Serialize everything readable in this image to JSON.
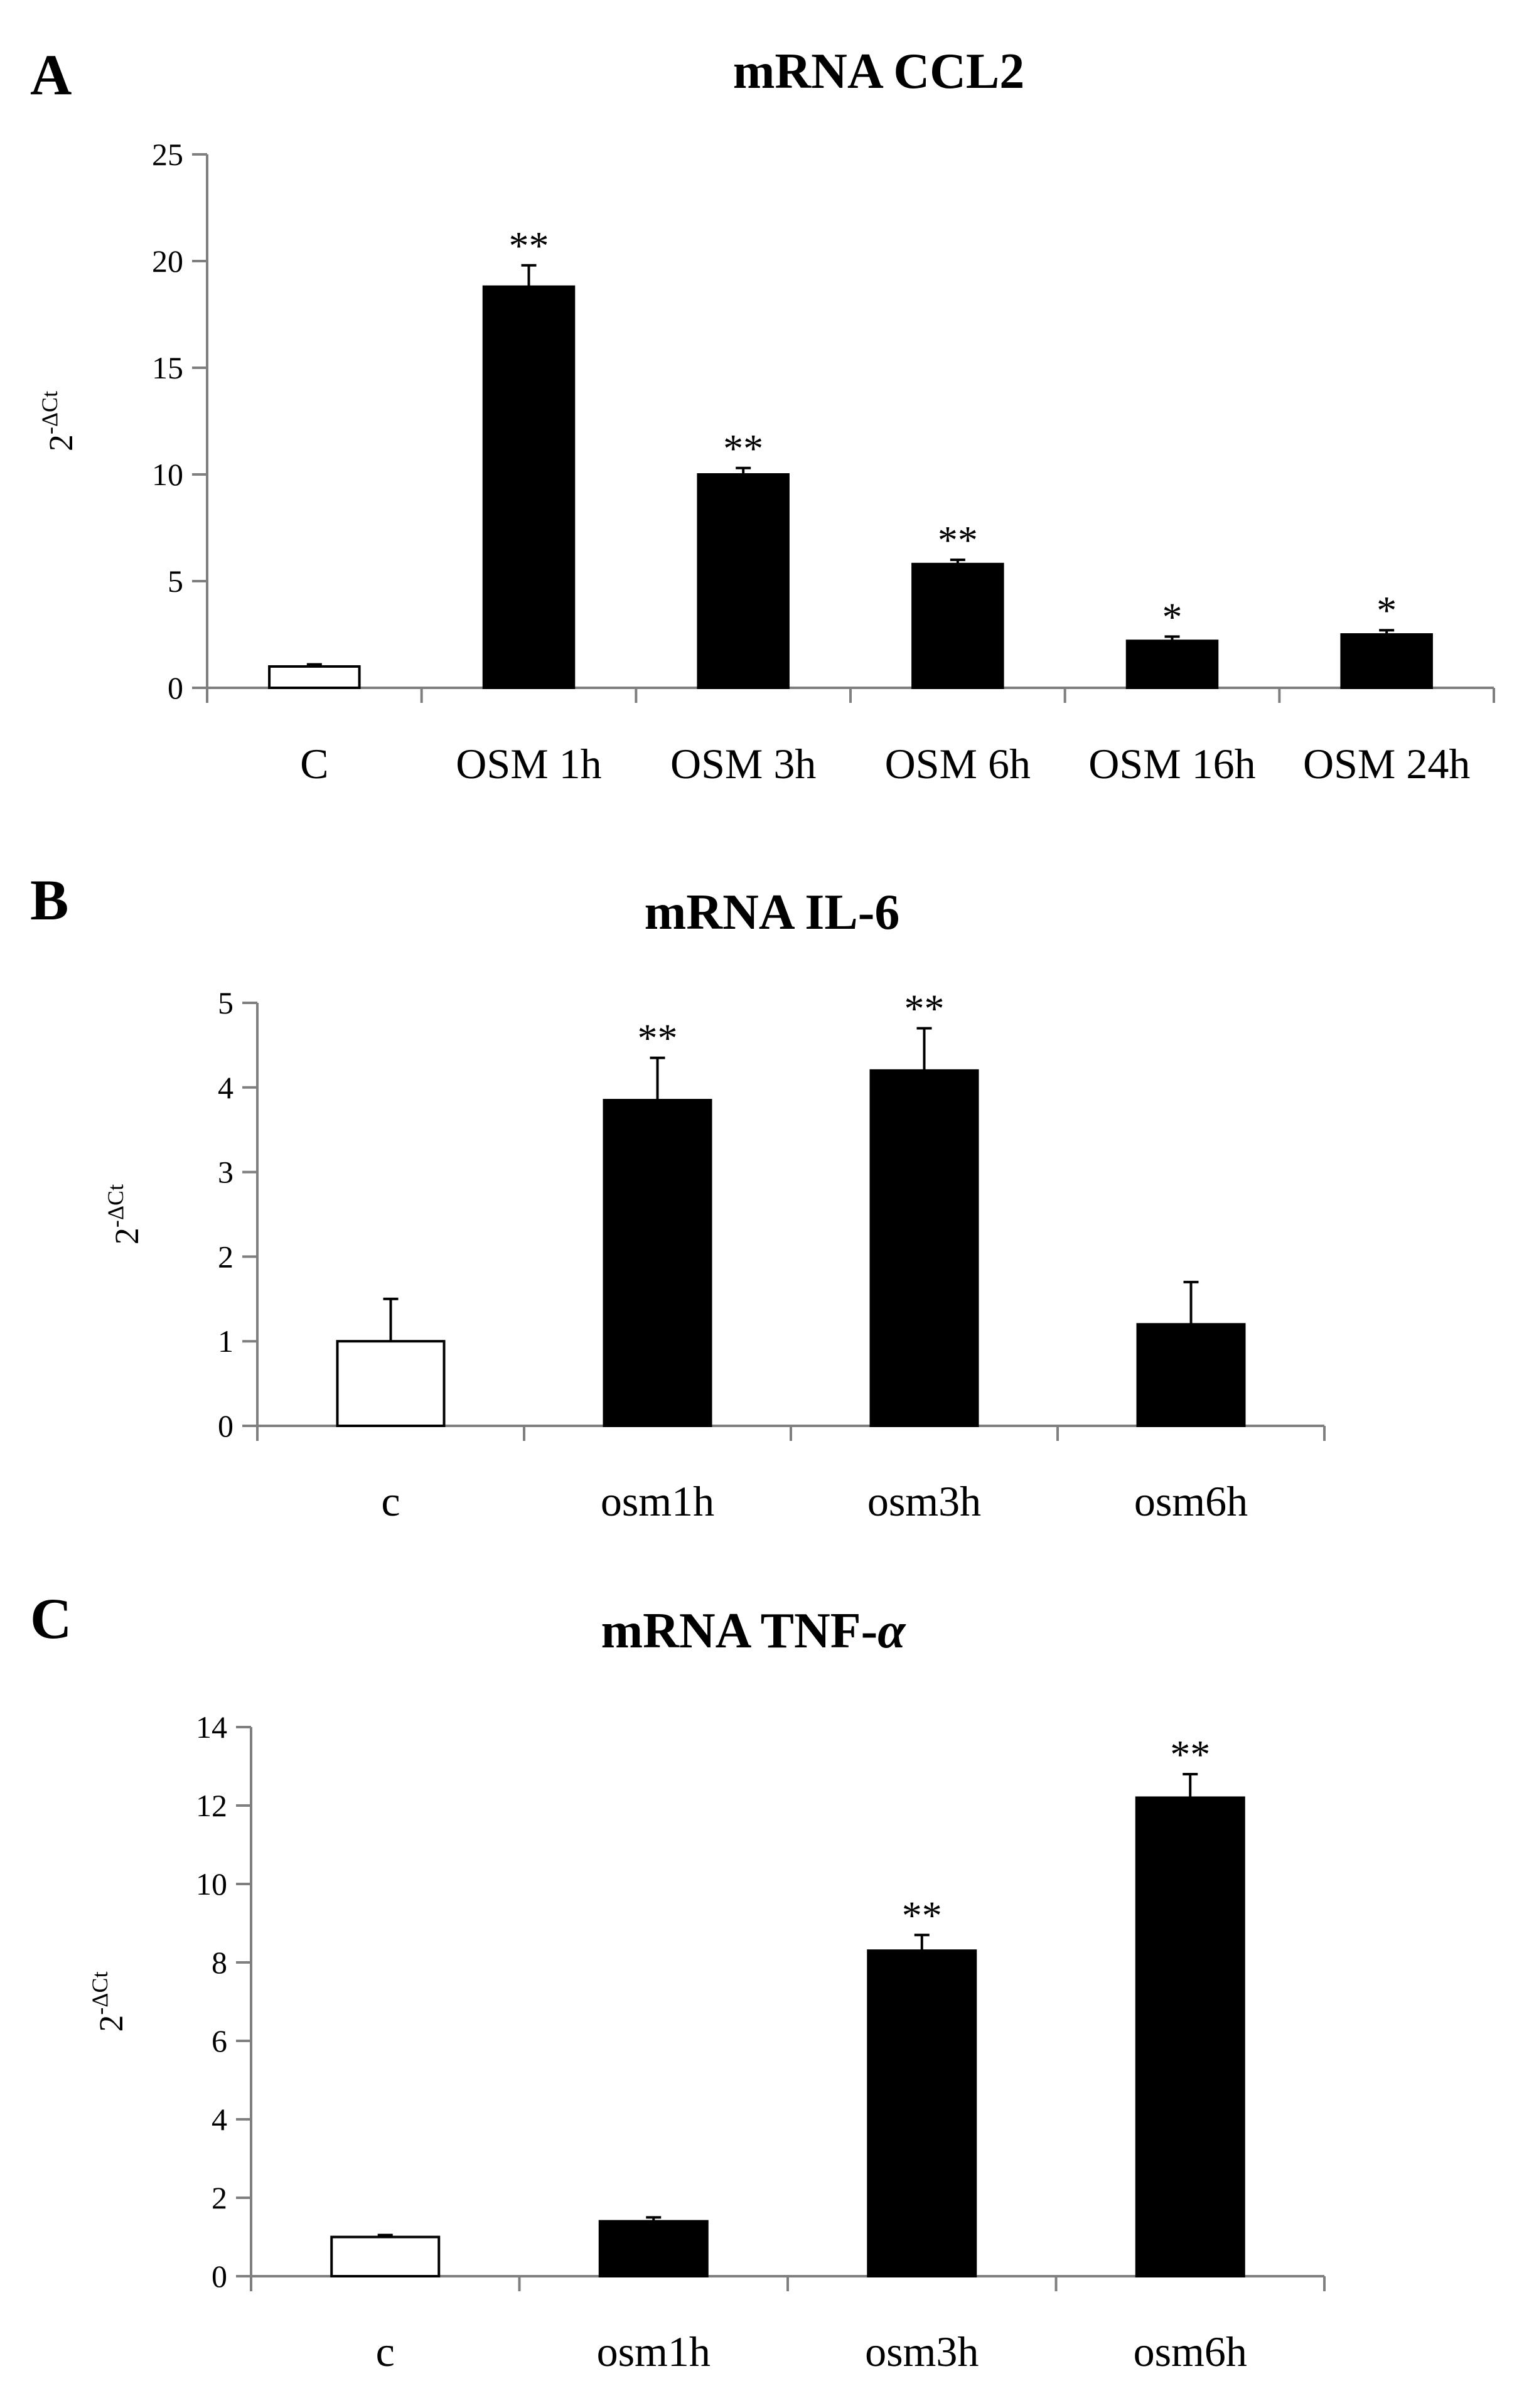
{
  "chart_data": [
    {
      "panel": "A",
      "type": "bar",
      "title": "mRNA CCL2",
      "ylabel_base": "2",
      "ylabel_sup": "-ΔCt",
      "ylim": [
        0,
        25
      ],
      "yticks": [
        "0",
        "5",
        "10",
        "15",
        "20",
        "25"
      ],
      "categories": [
        "C",
        "OSM 1h",
        "OSM 3h",
        "OSM 6h",
        "OSM 16h",
        "OSM 24h"
      ],
      "values": [
        1.0,
        18.8,
        10.0,
        5.8,
        2.2,
        2.5
      ],
      "errors": [
        0.1,
        1.0,
        0.3,
        0.2,
        0.2,
        0.2
      ],
      "significance": [
        "",
        "**",
        "**",
        "**",
        "*",
        "*"
      ],
      "bar_colors": [
        "#ffffff",
        "#000000",
        "#000000",
        "#000000",
        "#000000",
        "#000000"
      ]
    },
    {
      "panel": "B",
      "type": "bar",
      "title": "mRNA IL-6",
      "ylabel_base": "2",
      "ylabel_sup": "-ΔCt",
      "ylim": [
        0,
        5
      ],
      "yticks": [
        "0",
        "1",
        "2",
        "3",
        "4",
        "5"
      ],
      "categories": [
        "c",
        "osm1h",
        "osm3h",
        "osm6h"
      ],
      "values": [
        1.0,
        3.85,
        4.2,
        1.2
      ],
      "errors": [
        0.5,
        0.5,
        0.5,
        0.5
      ],
      "significance": [
        "",
        "**",
        "**",
        ""
      ],
      "bar_colors": [
        "#ffffff",
        "#000000",
        "#000000",
        "#000000"
      ]
    },
    {
      "panel": "C",
      "type": "bar",
      "title": "mRNA TNF-",
      "title_italic_suffix": "α",
      "ylabel_base": "2",
      "ylabel_sup": "-ΔCt",
      "ylim": [
        0,
        14
      ],
      "yticks": [
        "0",
        "2",
        "4",
        "6",
        "8",
        "10",
        "12",
        "14"
      ],
      "categories": [
        "c",
        "osm1h",
        "osm3h",
        "osm6h"
      ],
      "values": [
        1.0,
        1.4,
        8.3,
        12.2
      ],
      "errors": [
        0.05,
        0.1,
        0.4,
        0.6
      ],
      "significance": [
        "",
        "",
        "**",
        "**"
      ],
      "bar_colors": [
        "#ffffff",
        "#000000",
        "#000000",
        "#000000"
      ]
    }
  ]
}
